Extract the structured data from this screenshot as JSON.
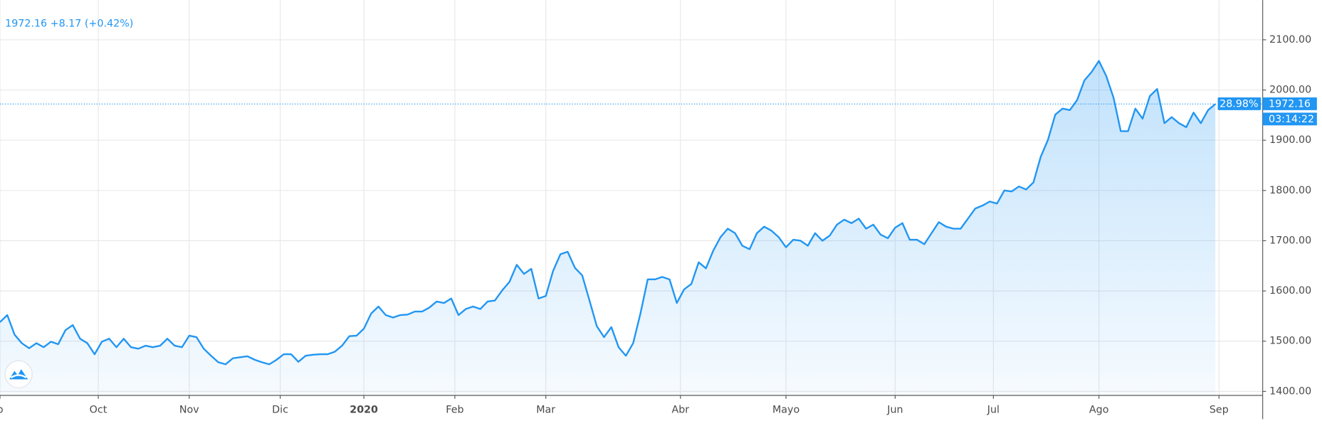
{
  "chart_data": {
    "type": "area",
    "header": "1972.16 +8.17 (+0.42%)",
    "percent_tag": "28.98%",
    "price_tag": "1972.16",
    "countdown_tag": "03:14:22",
    "color": "#2196f3",
    "grid": true,
    "values": [
      1538,
      1552,
      1513,
      1496,
      1486,
      1496,
      1488,
      1499,
      1494,
      1522,
      1532,
      1505,
      1496,
      1474,
      1499,
      1505,
      1488,
      1505,
      1488,
      1485,
      1491,
      1488,
      1491,
      1505,
      1491,
      1488,
      1511,
      1508,
      1485,
      1471,
      1458,
      1454,
      1466,
      1468,
      1470,
      1463,
      1458,
      1454,
      1463,
      1474,
      1474,
      1459,
      1471,
      1473,
      1474,
      1474,
      1479,
      1491,
      1510,
      1511,
      1525,
      1555,
      1569,
      1552,
      1547,
      1552,
      1553,
      1559,
      1559,
      1567,
      1579,
      1576,
      1585,
      1552,
      1564,
      1569,
      1564,
      1579,
      1581,
      1601,
      1618,
      1652,
      1634,
      1644,
      1585,
      1590,
      1640,
      1673,
      1678,
      1646,
      1631,
      1581,
      1530,
      1508,
      1528,
      1488,
      1471,
      1496,
      1555,
      1623,
      1623,
      1628,
      1623,
      1576,
      1603,
      1614,
      1657,
      1645,
      1680,
      1707,
      1724,
      1715,
      1690,
      1683,
      1715,
      1728,
      1720,
      1707,
      1687,
      1702,
      1700,
      1690,
      1715,
      1700,
      1710,
      1732,
      1742,
      1735,
      1744,
      1724,
      1732,
      1712,
      1705,
      1726,
      1735,
      1702,
      1702,
      1693,
      1715,
      1737,
      1728,
      1724,
      1724,
      1744,
      1764,
      1770,
      1778,
      1774,
      1800,
      1798,
      1808,
      1802,
      1816,
      1867,
      1901,
      1951,
      1963,
      1960,
      1980,
      2019,
      2036,
      2058,
      2028,
      1985,
      1918,
      1918,
      1963,
      1943,
      1988,
      2002,
      1934,
      1946,
      1934,
      1926,
      1955,
      1934,
      1960,
      1972.16
    ],
    "xlim": [
      0,
      173.5
    ],
    "xticks": [
      {
        "value": 0,
        "label": "p"
      },
      {
        "value": 13.5,
        "label": "Oct"
      },
      {
        "value": 26,
        "label": "Nov"
      },
      {
        "value": 38.5,
        "label": "Dic"
      },
      {
        "value": 50,
        "label": "2020"
      },
      {
        "value": 62.5,
        "label": "Feb"
      },
      {
        "value": 75,
        "label": "Mar"
      },
      {
        "value": 93.5,
        "label": "Abr"
      },
      {
        "value": 108,
        "label": "Mayo"
      },
      {
        "value": 123,
        "label": "Jun"
      },
      {
        "value": 136.5,
        "label": "Jul"
      },
      {
        "value": 151,
        "label": "Ago"
      },
      {
        "value": 167.5,
        "label": "Sep"
      }
    ],
    "ylim": [
      1392,
      2179
    ],
    "yticks": [
      {
        "value": 1400,
        "label": "1400.00"
      },
      {
        "value": 1500,
        "label": "1500.00"
      },
      {
        "value": 1600,
        "label": "1600.00"
      },
      {
        "value": 1700,
        "label": "1700.00"
      },
      {
        "value": 1800,
        "label": "1800.00"
      },
      {
        "value": 1900,
        "label": "1900.00"
      },
      {
        "value": 2000,
        "label": "2000.00"
      },
      {
        "value": 2100,
        "label": "2100.00"
      }
    ]
  }
}
